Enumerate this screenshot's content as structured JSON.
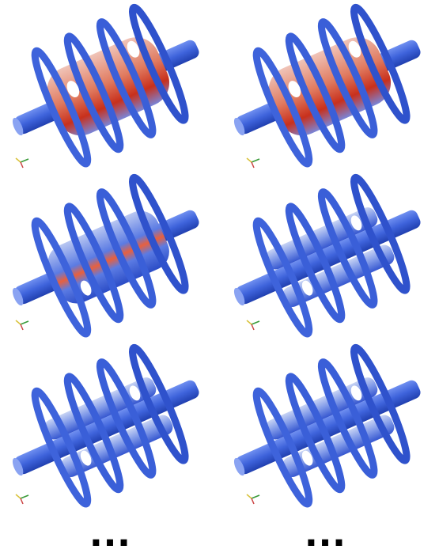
{
  "footer": {
    "left": "...",
    "right": "..."
  }
}
